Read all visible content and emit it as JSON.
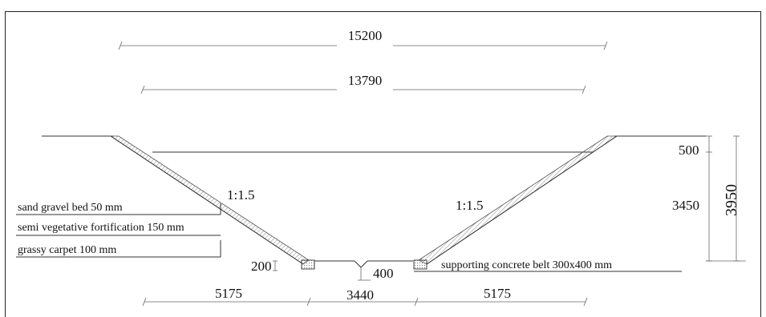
{
  "dimensions": {
    "top_width": "15200",
    "water_width": "13790",
    "freeboard": "500",
    "water_depth": "3450",
    "total_depth": "3950",
    "left_slope": "1:1.5",
    "right_slope": "1:1.5",
    "bottom_left_proj": "5175",
    "bottom_width": "3440",
    "bottom_right_proj": "5175",
    "bed_step": "200",
    "channel_depth": "400"
  },
  "layers": {
    "sand_gravel": "sand gravel bed 50 mm",
    "semi_vegetative": "semi vegetative fortification 150 mm",
    "grassy_carpet": "grassy carpet 100 mm"
  },
  "supporting_belt": "supporting concrete belt 300x400 mm"
}
